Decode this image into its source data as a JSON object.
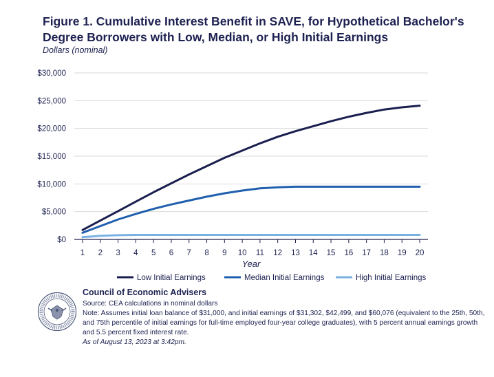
{
  "header": {
    "title": "Figure 1. Cumulative Interest Benefit in SAVE, for Hypothetical Bachelor's Degree Borrowers with Low, Median, or High Initial Earnings",
    "subtitle": "Dollars (nominal)"
  },
  "chart_data": {
    "type": "line",
    "title": "Figure 1. Cumulative Interest Benefit in SAVE, for Hypothetical Bachelor's Degree Borrowers with Low, Median, or High Initial Earnings",
    "ylabel": "Dollars (nominal)",
    "xlabel": "Year",
    "x": [
      1,
      2,
      3,
      4,
      5,
      6,
      7,
      8,
      9,
      10,
      11,
      12,
      13,
      14,
      15,
      16,
      17,
      18,
      19,
      20
    ],
    "ylim": [
      0,
      30000
    ],
    "yticks": [
      0,
      5000,
      10000,
      15000,
      20000,
      25000,
      30000
    ],
    "ytick_labels": [
      "$0",
      "$5,000",
      "$10,000",
      "$15,000",
      "$20,000",
      "$25,000",
      "$30,000"
    ],
    "grid": "horizontal",
    "legend_position": "bottom",
    "series": [
      {
        "name": "Low Initial Earnings",
        "color": "#1b1f4f",
        "values": [
          1700,
          3400,
          5100,
          6800,
          8500,
          10100,
          11700,
          13200,
          14700,
          16000,
          17300,
          18500,
          19500,
          20400,
          21300,
          22100,
          22800,
          23400,
          23800,
          24100
        ]
      },
      {
        "name": "Median Initial Earnings",
        "color": "#1f5fae",
        "values": [
          1200,
          2400,
          3600,
          4600,
          5500,
          6300,
          7000,
          7700,
          8300,
          8800,
          9200,
          9400,
          9500,
          9500,
          9500,
          9500,
          9500,
          9500,
          9500,
          9500
        ]
      },
      {
        "name": "High Initial Earnings",
        "color": "#79b1e3",
        "values": [
          400,
          650,
          750,
          800,
          800,
          800,
          800,
          800,
          800,
          800,
          800,
          800,
          800,
          800,
          800,
          800,
          800,
          800,
          800,
          800
        ]
      }
    ]
  },
  "footer": {
    "org": "Council of Economic Advisers",
    "source": "Source: CEA calculations in nominal dollars",
    "note": "Note: Assumes initial loan balance of $31,000, and initial earnings of $31,302, $42,499, and $60,076 (equivalent to the 25th, 50th, and 75th percentile of initial earnings for full-time employed four-year college graduates), with 5 percent annual earnings growth and 5.5 percent fixed interest rate.",
    "asof": "As of August 13, 2023 at 3:42pm.",
    "seal_text": "PRESIDENT · COUNCIL OF ECONOMIC ADVISERS"
  }
}
